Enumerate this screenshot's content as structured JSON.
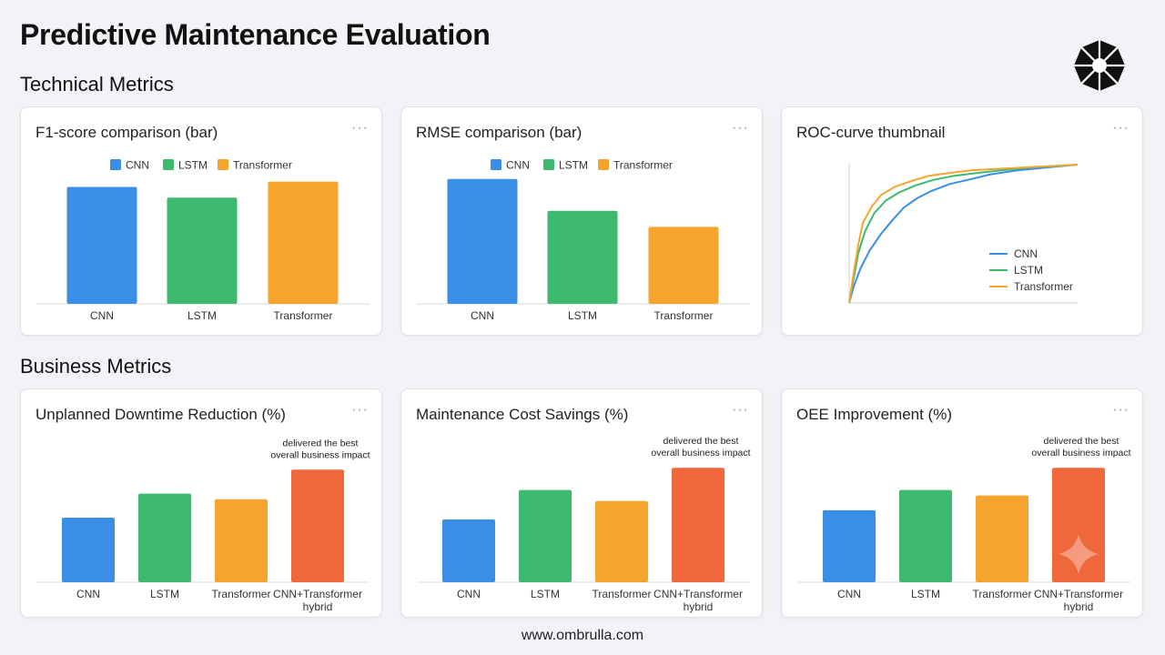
{
  "page": {
    "title": "Predictive Maintenance Evaluation",
    "footer_url": "www.ombrulla.com"
  },
  "sections": {
    "technical": "Technical Metrics",
    "business": "Business Metrics"
  },
  "menu_glyph": "···",
  "colors": {
    "CNN": "#3b8ee6",
    "LSTM": "#3dba6f",
    "Transformer": "#f5a52d",
    "Hybrid": "#f0673c"
  },
  "chart_data": [
    {
      "id": "f1",
      "type": "bar",
      "title": "F1-score comparison (bar)",
      "legend": [
        "CNN",
        "LSTM",
        "Transformer"
      ],
      "categories": [
        "CNN",
        "LSTM",
        "Transformer"
      ],
      "values": [
        0.88,
        0.8,
        0.92
      ],
      "ylim": [
        0,
        1
      ]
    },
    {
      "id": "rmse",
      "type": "bar",
      "title": "RMSE comparison (bar)",
      "legend": [
        "CNN",
        "LSTM",
        "Transformer"
      ],
      "categories": [
        "CNN",
        "LSTM",
        "Transformer"
      ],
      "values": [
        0.94,
        0.7,
        0.58
      ],
      "ylim": [
        0,
        1
      ]
    },
    {
      "id": "roc",
      "type": "line",
      "title": "ROC-curve thumbnail",
      "xlim": [
        0,
        1
      ],
      "ylim": [
        0,
        1
      ],
      "series": [
        {
          "name": "CNN",
          "x": [
            0,
            0.02,
            0.05,
            0.09,
            0.14,
            0.19,
            0.24,
            0.3,
            0.36,
            0.44,
            0.52,
            0.62,
            0.74,
            0.87,
            1
          ],
          "y": [
            0,
            0.12,
            0.25,
            0.38,
            0.5,
            0.6,
            0.69,
            0.76,
            0.81,
            0.86,
            0.89,
            0.93,
            0.96,
            0.98,
            1
          ]
        },
        {
          "name": "LSTM",
          "x": [
            0,
            0.02,
            0.04,
            0.07,
            0.11,
            0.16,
            0.22,
            0.29,
            0.37,
            0.46,
            0.56,
            0.67,
            0.79,
            0.9,
            1
          ],
          "y": [
            0,
            0.18,
            0.36,
            0.52,
            0.65,
            0.74,
            0.8,
            0.85,
            0.89,
            0.92,
            0.94,
            0.96,
            0.98,
            0.99,
            1
          ]
        },
        {
          "name": "Transformer",
          "x": [
            0,
            0.02,
            0.04,
            0.06,
            0.1,
            0.14,
            0.2,
            0.27,
            0.35,
            0.44,
            0.54,
            0.65,
            0.77,
            0.89,
            1
          ],
          "y": [
            0,
            0.22,
            0.42,
            0.58,
            0.7,
            0.78,
            0.84,
            0.88,
            0.92,
            0.94,
            0.96,
            0.97,
            0.98,
            0.99,
            1
          ]
        }
      ],
      "legend_position": "bottom-right"
    },
    {
      "id": "downtime",
      "type": "bar",
      "title": "Unplanned Downtime Reduction (%)",
      "categories": [
        "CNN",
        "LSTM",
        "Transformer",
        "CNN+Transformer hybrid"
      ],
      "values": [
        35,
        48,
        45,
        61
      ],
      "ylim": [
        0,
        70
      ],
      "annotation": {
        "text": "delivered the best overall business impact",
        "target": 3
      }
    },
    {
      "id": "cost",
      "type": "bar",
      "title": "Maintenance Cost Savings (%)",
      "categories": [
        "CNN",
        "LSTM",
        "Transformer",
        "CNN+Transformer hybrid"
      ],
      "values": [
        34,
        50,
        44,
        62
      ],
      "ylim": [
        0,
        70
      ],
      "annotation": {
        "text": "delivered the best overall business impact",
        "target": 3
      }
    },
    {
      "id": "oee",
      "type": "bar",
      "title": "OEE Improvement (%)",
      "categories": [
        "CNN",
        "LSTM",
        "Transformer",
        "CNN+Transformer hybrid"
      ],
      "values": [
        39,
        50,
        47,
        62
      ],
      "ylim": [
        0,
        70
      ],
      "annotation": {
        "text": "delivered the best overall business impact",
        "target": 3
      }
    }
  ]
}
